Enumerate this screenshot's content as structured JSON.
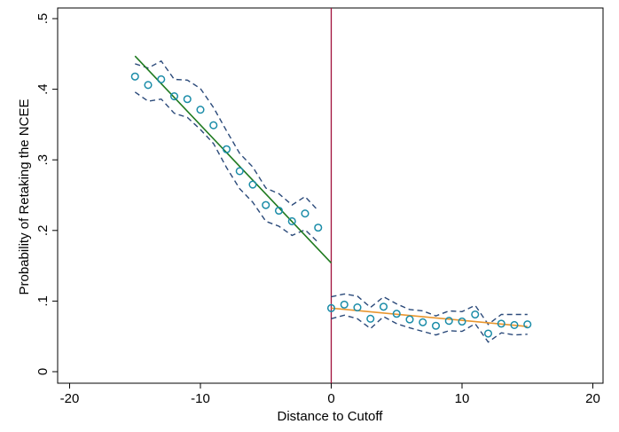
{
  "chart_data": {
    "type": "scatter",
    "xlabel": "Distance to Cutoff",
    "ylabel": "Probability of Retaking the NCEE",
    "xlim": [
      -20,
      20
    ],
    "ylim": [
      0,
      0.5
    ],
    "x_ticks": [
      -20,
      -10,
      0,
      10,
      20
    ],
    "x_tick_labels": [
      "-20",
      "-10",
      "0",
      "10",
      "20"
    ],
    "y_ticks": [
      0,
      0.1,
      0.2,
      0.3,
      0.4,
      0.5
    ],
    "y_tick_labels": [
      "0",
      ".1",
      ".2",
      ".3",
      ".4",
      ".5"
    ],
    "grid": false,
    "cutoff_x": 0,
    "points": {
      "x": [
        -15,
        -14,
        -13,
        -12,
        -11,
        -10,
        -9,
        -8,
        -7,
        -6,
        -5,
        -4,
        -3,
        -2,
        -1,
        0,
        1,
        2,
        3,
        4,
        5,
        6,
        7,
        8,
        9,
        10,
        11,
        12,
        13,
        14,
        15
      ],
      "y": [
        0.418,
        0.406,
        0.414,
        0.39,
        0.386,
        0.371,
        0.349,
        0.315,
        0.284,
        0.265,
        0.236,
        0.228,
        0.213,
        0.224,
        0.204,
        0.09,
        0.095,
        0.091,
        0.075,
        0.092,
        0.082,
        0.074,
        0.07,
        0.065,
        0.072,
        0.071,
        0.081,
        0.054,
        0.068,
        0.066,
        0.067
      ]
    },
    "fit_left": {
      "x": [
        -15,
        0
      ],
      "y": [
        0.447,
        0.154
      ]
    },
    "fit_right": {
      "x": [
        0,
        15
      ],
      "y": [
        0.09,
        0.064
      ]
    },
    "ci_left": {
      "x": [
        -15,
        -14,
        -13,
        -12,
        -11,
        -10,
        -9,
        -8,
        -7,
        -6,
        -5,
        -4,
        -3,
        -2,
        -1
      ],
      "upper": [
        0.436,
        0.43,
        0.44,
        0.414,
        0.413,
        0.401,
        0.374,
        0.341,
        0.309,
        0.29,
        0.26,
        0.252,
        0.236,
        0.248,
        0.228
      ],
      "lower": [
        0.396,
        0.383,
        0.386,
        0.366,
        0.36,
        0.343,
        0.323,
        0.289,
        0.259,
        0.24,
        0.213,
        0.206,
        0.193,
        0.201,
        0.183
      ]
    },
    "ci_right": {
      "x": [
        0,
        1,
        2,
        3,
        4,
        5,
        6,
        7,
        8,
        9,
        10,
        11,
        12,
        13,
        14,
        15
      ],
      "upper": [
        0.106,
        0.11,
        0.107,
        0.091,
        0.106,
        0.096,
        0.088,
        0.086,
        0.079,
        0.086,
        0.085,
        0.094,
        0.067,
        0.081,
        0.081,
        0.081
      ],
      "lower": [
        0.075,
        0.08,
        0.075,
        0.061,
        0.078,
        0.068,
        0.062,
        0.057,
        0.052,
        0.058,
        0.057,
        0.068,
        0.042,
        0.055,
        0.052,
        0.053
      ]
    },
    "colors": {
      "points": "#1a8ca8",
      "fit_left": "#1f7a1f",
      "fit_right": "#e8962e",
      "ci": "#2b4a7a",
      "cutoff_line": "#a0103a",
      "axis": "#000000"
    }
  }
}
